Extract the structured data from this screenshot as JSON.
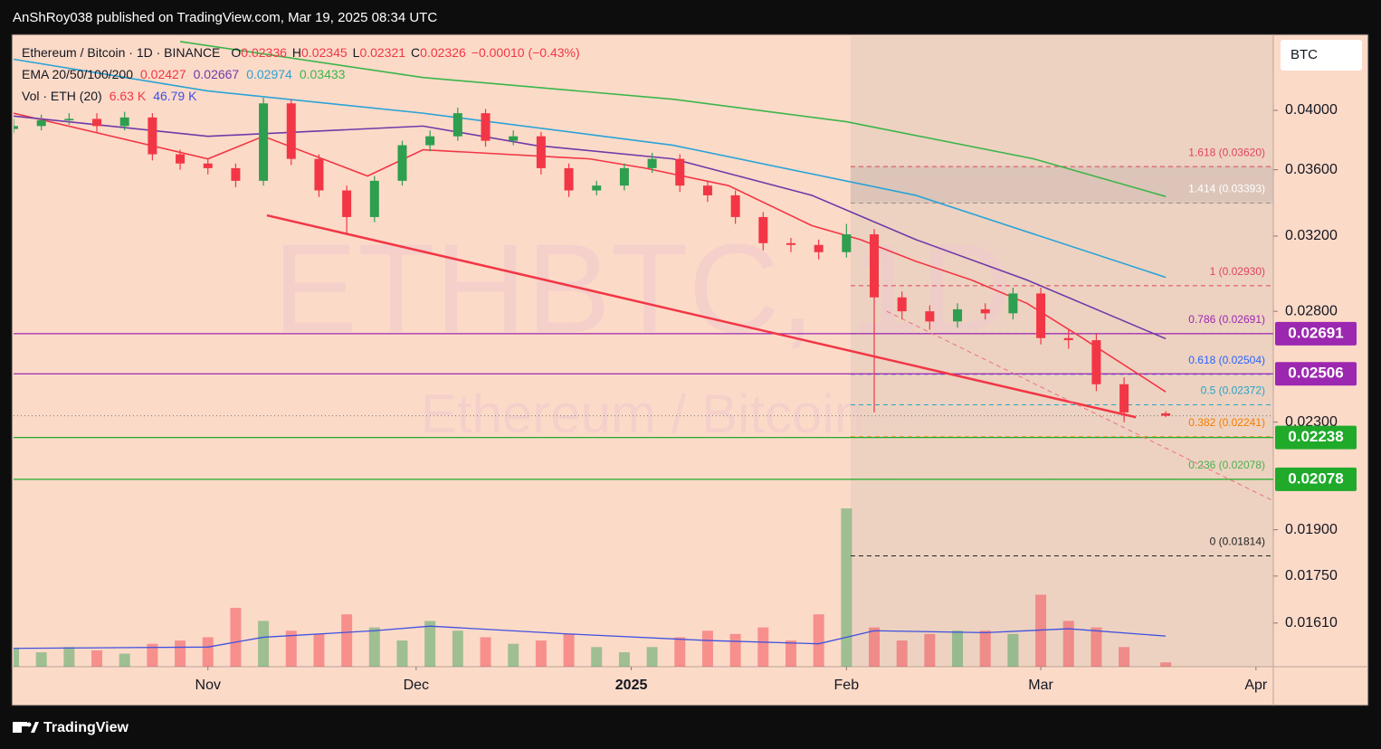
{
  "header": {
    "text": "AnShRoy038 published on TradingView.com, Mar 19, 2025 08:34 UTC"
  },
  "footer": {
    "brand": "TradingView"
  },
  "chart_data": {
    "type": "candlestick",
    "symbol": "Ethereum / Bitcoin · 1D · BINANCE",
    "watermark": "ETHBTC, 1D",
    "watermark_sub": "Ethereum / Bitcoin",
    "currency": "BTC",
    "ohlc_letters": [
      "O",
      "H",
      "L",
      "C"
    ],
    "change": {
      "value": -0.0001,
      "label": "−0.00010 (−0.43%)"
    },
    "ema_label": "EMA 20/50/100/200",
    "volume_label": "Vol · ETH (20)",
    "log_scale": true,
    "up_color": "#2e9e4f",
    "down_color": "#f23645",
    "xlim": [
      0,
      181.5
    ],
    "xticks": [
      {
        "value": 28,
        "label": "Nov"
      },
      {
        "value": 58,
        "label": "Dec"
      },
      {
        "value": 89,
        "label": "2025"
      },
      {
        "value": 120,
        "label": "Feb"
      },
      {
        "value": 148,
        "label": "Mar"
      },
      {
        "value": 179,
        "label": "Apr"
      }
    ],
    "ylim": [
      0.0149,
      0.04563
    ],
    "yticks": [
      {
        "value": 0.04,
        "label": "0.04000"
      },
      {
        "value": 0.036,
        "label": "0.03600"
      },
      {
        "value": 0.032,
        "label": "0.03200"
      },
      {
        "value": 0.028,
        "label": "0.02800"
      },
      {
        "value": 0.023,
        "label": "0.02300"
      },
      {
        "value": 0.019,
        "label": "0.01900"
      },
      {
        "value": 0.0175,
        "label": "0.01750"
      },
      {
        "value": 0.0161,
        "label": "0.01610"
      }
    ],
    "x": [
      0,
      4,
      8,
      12,
      16,
      20,
      24,
      28,
      32,
      36,
      40,
      44,
      48,
      52,
      56,
      60,
      64,
      68,
      72,
      76,
      80,
      84,
      88,
      92,
      96,
      100,
      104,
      108,
      112,
      116,
      120,
      124,
      128,
      132,
      136,
      140,
      144,
      148,
      152,
      156,
      160,
      166
    ],
    "open": [
      0.0387,
      0.0389,
      0.0393,
      0.0394,
      0.0389,
      0.0395,
      0.037,
      0.0364,
      0.0361,
      0.0353,
      0.0405,
      0.0367,
      0.0347,
      0.0331,
      0.0353,
      0.0376,
      0.0382,
      0.0398,
      0.0379,
      0.0382,
      0.0361,
      0.0347,
      0.035,
      0.0361,
      0.0367,
      0.035,
      0.0344,
      0.0331,
      0.0316,
      0.0315,
      0.0311,
      0.0321,
      0.0287,
      0.028,
      0.0275,
      0.0281,
      0.0279,
      0.0289,
      0.0267,
      0.0266,
      0.0246,
      0.02336
    ],
    "high": [
      0.0394,
      0.0397,
      0.0398,
      0.0398,
      0.0399,
      0.0398,
      0.0373,
      0.0367,
      0.0364,
      0.0409,
      0.0408,
      0.037,
      0.035,
      0.0356,
      0.0379,
      0.0386,
      0.0402,
      0.0401,
      0.0386,
      0.0385,
      0.0364,
      0.0353,
      0.0364,
      0.0371,
      0.037,
      0.0353,
      0.0347,
      0.0334,
      0.0319,
      0.0318,
      0.0327,
      0.0324,
      0.029,
      0.0283,
      0.0284,
      0.0284,
      0.0292,
      0.0292,
      0.0271,
      0.0269,
      0.0249,
      0.02345
    ],
    "low": [
      0.0384,
      0.0386,
      0.039,
      0.0385,
      0.0386,
      0.0366,
      0.036,
      0.0357,
      0.0349,
      0.035,
      0.0363,
      0.0343,
      0.0321,
      0.0328,
      0.035,
      0.0372,
      0.0379,
      0.0375,
      0.0376,
      0.0357,
      0.0343,
      0.0344,
      0.0347,
      0.0358,
      0.0346,
      0.034,
      0.0327,
      0.0312,
      0.0311,
      0.0307,
      0.0308,
      0.0234,
      0.0276,
      0.0271,
      0.0272,
      0.0276,
      0.0276,
      0.0264,
      0.0262,
      0.0243,
      0.023,
      0.02321
    ],
    "close": [
      0.0389,
      0.0393,
      0.0394,
      0.0389,
      0.0395,
      0.037,
      0.0364,
      0.0361,
      0.0353,
      0.0405,
      0.0367,
      0.0347,
      0.0331,
      0.0353,
      0.0376,
      0.0382,
      0.0398,
      0.0379,
      0.0382,
      0.0361,
      0.0347,
      0.035,
      0.0361,
      0.0367,
      0.035,
      0.0344,
      0.0331,
      0.0316,
      0.0315,
      0.0311,
      0.0321,
      0.0287,
      0.028,
      0.0275,
      0.0281,
      0.0279,
      0.0289,
      0.0267,
      0.0266,
      0.0246,
      0.0234,
      0.02326
    ],
    "volume": {
      "values": [
        28,
        22,
        30,
        25,
        20,
        35,
        40,
        45,
        90,
        70,
        55,
        50,
        80,
        60,
        40,
        70,
        55,
        45,
        35,
        40,
        50,
        30,
        22,
        30,
        45,
        55,
        50,
        60,
        40,
        80,
        242,
        60,
        40,
        50,
        55,
        55,
        50,
        110,
        70,
        60,
        30,
        6.63
      ],
      "legend_label": "6.63 K",
      "ma_x": [
        0,
        28,
        36,
        52,
        60,
        80,
        100,
        116,
        124,
        140,
        152,
        166
      ],
      "ma_values": [
        28,
        30,
        45,
        55,
        62,
        50,
        40,
        35,
        55,
        52,
        58,
        46.79
      ],
      "ma_label": "46.79 K",
      "ma_color": "#3f51e0"
    },
    "ema": [
      {
        "color": "#f23645",
        "x": [
          0,
          28,
          36,
          51,
          59,
          83,
          91,
          103,
          115,
          122,
          130,
          138,
          146,
          154,
          166
        ],
        "values": [
          0.0398,
          0.0367,
          0.0382,
          0.0356,
          0.0373,
          0.0367,
          0.0361,
          0.035,
          0.0326,
          0.0318,
          0.0306,
          0.0296,
          0.0284,
          0.0267,
          0.02427
        ]
      },
      {
        "color": "#6f3aa8",
        "x": [
          0,
          28,
          59,
          75,
          95,
          115,
          130,
          146,
          166
        ],
        "values": [
          0.0396,
          0.0382,
          0.0389,
          0.0376,
          0.0367,
          0.0344,
          0.0318,
          0.0296,
          0.02667
        ]
      },
      {
        "color": "#2aa3d6",
        "x": [
          0,
          28,
          59,
          95,
          130,
          166
        ],
        "values": [
          0.0438,
          0.0414,
          0.0398,
          0.0376,
          0.0344,
          0.02974
        ]
      },
      {
        "color": "#3bb54a",
        "x": [
          24,
          59,
          95,
          120,
          147,
          166
        ],
        "values": [
          0.0452,
          0.0424,
          0.0408,
          0.0392,
          0.0367,
          0.03433
        ]
      }
    ],
    "levels": [
      {
        "value": 0.02691,
        "color": "#9c27b0"
      },
      {
        "value": 0.02506,
        "color": "#9c27b0"
      },
      {
        "value": 0.02238,
        "color": "#1faa2a"
      },
      {
        "value": 0.02078,
        "color": "#1faa2a"
      }
    ],
    "fib_start": 120.6,
    "fib": [
      {
        "value": 0.0362,
        "label": "1.618 (0.03620)",
        "color": "#e0455a"
      },
      {
        "value": 0.03393,
        "label": "1.414 (0.03393)",
        "color": "#9a8f8f"
      },
      {
        "value": 0.0293,
        "label": "1 (0.02930)",
        "color": "#e0455a"
      },
      {
        "value": 0.02691,
        "label": "0.786 (0.02691)",
        "color": "#9c27b0"
      },
      {
        "value": 0.02504,
        "label": "0.618 (0.02504)",
        "color": "#2962ff"
      },
      {
        "value": 0.02372,
        "label": "0.5 (0.02372)",
        "color": "#26a3c6"
      },
      {
        "value": 0.02241,
        "label": "0.382 (0.02241)",
        "color": "#f57c00"
      },
      {
        "value": 0.02078,
        "label": "0.236 (0.02078)",
        "color": "#4caf50"
      },
      {
        "value": 0.01814,
        "label": "0 (0.01814)",
        "color": "#222222"
      }
    ],
    "trendlines": [
      {
        "x": [
          36.5,
          161.7
        ],
        "values": [
          0.0332,
          0.0232
        ],
        "color": "#f23645",
        "dashed": false
      },
      {
        "x": [
          125.8,
          181.5
        ],
        "values": [
          0.028,
          0.02
        ],
        "color": "#ee6f82",
        "dashed": true
      }
    ]
  }
}
